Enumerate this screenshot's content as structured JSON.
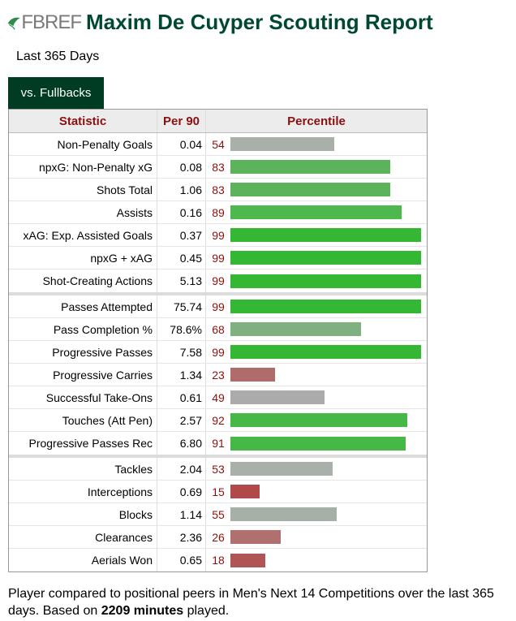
{
  "header": {
    "logo_text": "FBREF",
    "title": "Maxim De Cuyper Scouting Report"
  },
  "subtitle": "Last 365 Days",
  "tab": {
    "label": "vs. Fullbacks"
  },
  "table": {
    "columns": [
      "Statistic",
      "Per 90",
      "Percentile"
    ],
    "groups": [
      [
        {
          "stat": "Non-Penalty Goals",
          "per90": "0.04",
          "pct": "54",
          "pct_value": 54,
          "color": "#a9b0a9"
        },
        {
          "stat": "npxG: Non-Penalty xG",
          "per90": "0.08",
          "pct": "83",
          "pct_value": 83,
          "color": "#5cb35c"
        },
        {
          "stat": "Shots Total",
          "per90": "1.06",
          "pct": "83",
          "pct_value": 83,
          "color": "#5cb35c"
        },
        {
          "stat": "Assists",
          "per90": "0.16",
          "pct": "89",
          "pct_value": 89,
          "color": "#4db84d"
        },
        {
          "stat": "xAG: Exp. Assisted Goals",
          "per90": "0.37",
          "pct": "99",
          "pct_value": 99,
          "color": "#34b834"
        },
        {
          "stat": "npxG + xAG",
          "per90": "0.45",
          "pct": "99",
          "pct_value": 99,
          "color": "#34b834"
        },
        {
          "stat": "Shot-Creating Actions",
          "per90": "5.13",
          "pct": "99",
          "pct_value": 99,
          "color": "#34b834"
        }
      ],
      [
        {
          "stat": "Passes Attempted",
          "per90": "75.74",
          "pct": "99",
          "pct_value": 99,
          "color": "#34b834"
        },
        {
          "stat": "Pass Completion %",
          "per90": "78.6%",
          "pct": "68",
          "pct_value": 68,
          "color": "#7fb07f"
        },
        {
          "stat": "Progressive Passes",
          "per90": "7.58",
          "pct": "99",
          "pct_value": 99,
          "color": "#34b834"
        },
        {
          "stat": "Progressive Carries",
          "per90": "1.34",
          "pct": "23",
          "pct_value": 23,
          "color": "#b06b6b"
        },
        {
          "stat": "Successful Take-Ons",
          "per90": "0.61",
          "pct": "49",
          "pct_value": 49,
          "color": "#ababab"
        },
        {
          "stat": "Touches (Att Pen)",
          "per90": "2.57",
          "pct": "92",
          "pct_value": 92,
          "color": "#45b845"
        },
        {
          "stat": "Progressive Passes Rec",
          "per90": "6.80",
          "pct": "91",
          "pct_value": 91,
          "color": "#45b845"
        }
      ],
      [
        {
          "stat": "Tackles",
          "per90": "2.04",
          "pct": "53",
          "pct_value": 53,
          "color": "#a9b0a9"
        },
        {
          "stat": "Interceptions",
          "per90": "0.69",
          "pct": "15",
          "pct_value": 15,
          "color": "#b04a4a"
        },
        {
          "stat": "Blocks",
          "per90": "1.14",
          "pct": "55",
          "pct_value": 55,
          "color": "#a6b0a6"
        },
        {
          "stat": "Clearances",
          "per90": "2.36",
          "pct": "26",
          "pct_value": 26,
          "color": "#b07070"
        },
        {
          "stat": "Aerials Won",
          "per90": "0.65",
          "pct": "18",
          "pct_value": 18,
          "color": "#b05555"
        }
      ]
    ]
  },
  "footer": {
    "text_before": "Player compared to positional peers in Men's Next 14 Competitions over the last 365 days. Based on ",
    "minutes": "2209 minutes",
    "text_after": " played."
  }
}
